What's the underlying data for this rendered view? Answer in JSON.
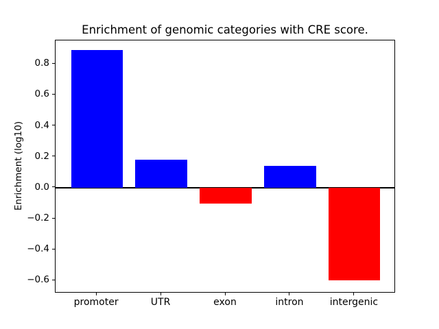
{
  "chart_data": {
    "type": "bar",
    "title": "Enrichment of genomic categories with CRE score.",
    "xlabel": "",
    "ylabel": "Enrichment (log10)",
    "categories": [
      "promoter",
      "UTR",
      "exon",
      "intron",
      "intergenic"
    ],
    "values": [
      0.89,
      0.18,
      -0.1,
      0.14,
      -0.6
    ],
    "bar_colors": [
      "#0000ff",
      "#0000ff",
      "#ff0000",
      "#0000ff",
      "#ff0000"
    ],
    "positive_color": "#0000ff",
    "negative_color": "#ff0000",
    "bar_width": 0.8,
    "ylim": [
      -0.682,
      0.952
    ],
    "xlim": [
      -0.64,
      4.64
    ],
    "yticks": [
      0.8,
      0.6,
      0.4,
      0.2,
      0.0,
      -0.2,
      -0.4,
      -0.6
    ],
    "ytick_labels": [
      "0.8",
      "0.6",
      "0.4",
      "0.2",
      "0.0",
      "−0.2",
      "−0.4",
      "−0.6"
    ],
    "grid": false,
    "legend": "none",
    "zero_line": true,
    "axis_color": "#000000",
    "background": "#ffffff"
  }
}
